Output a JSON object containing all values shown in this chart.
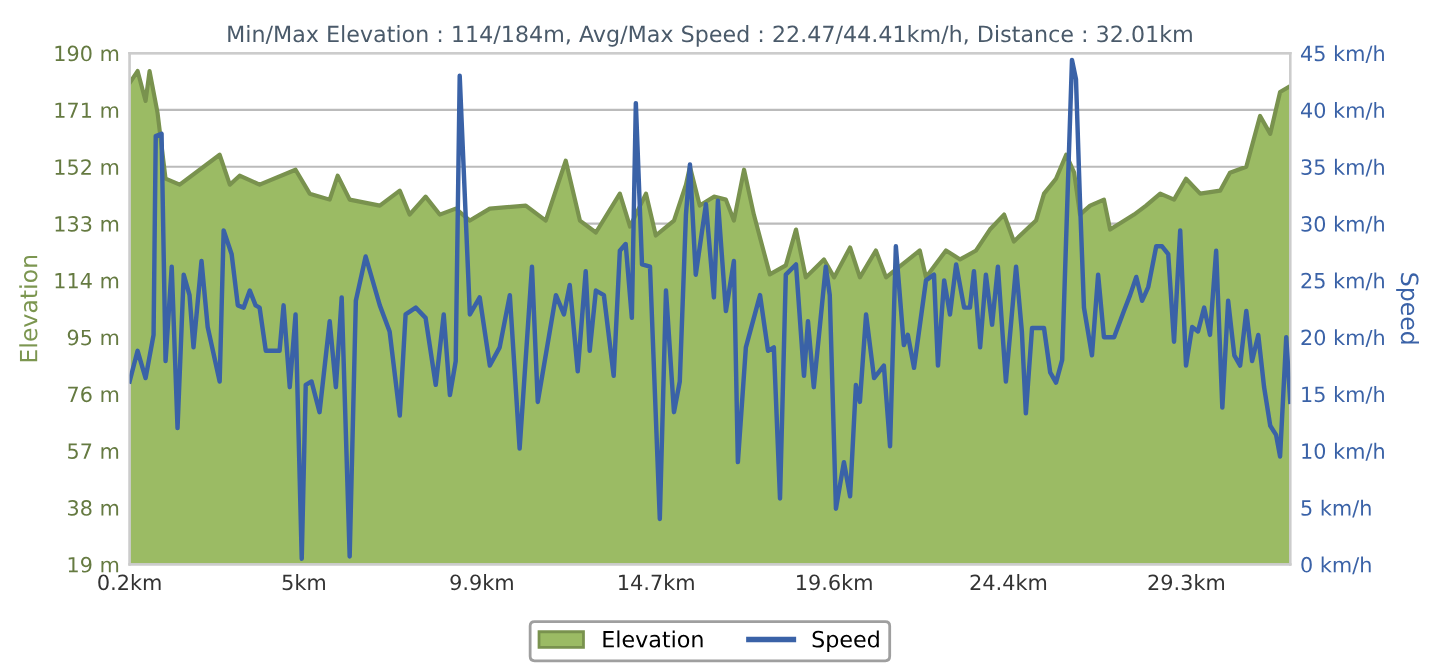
{
  "chart_data": {
    "type": "area",
    "title": "Min/Max Elevation : 114/184m, Avg/Max Speed : 22.47/44.41km/h, Distance : 32.01km",
    "ylabel": "Elevation",
    "y2label": "Speed",
    "xlim": [
      0.2,
      32.16
    ],
    "xticks": [
      {
        "value": 0.2,
        "label": "0.2km"
      },
      {
        "value": 5,
        "label": "5km"
      },
      {
        "value": 9.9,
        "label": "9.9km"
      },
      {
        "value": 14.7,
        "label": "14.7km"
      },
      {
        "value": 19.6,
        "label": "19.6km"
      },
      {
        "value": 24.4,
        "label": "24.4km"
      },
      {
        "value": 29.3,
        "label": "29.3km"
      }
    ],
    "ylim": [
      19,
      190
    ],
    "yticks": [
      {
        "value": 19,
        "label": "19 m"
      },
      {
        "value": 38,
        "label": "38 m"
      },
      {
        "value": 57,
        "label": "57 m"
      },
      {
        "value": 76,
        "label": "76 m"
      },
      {
        "value": 95,
        "label": "95 m"
      },
      {
        "value": 114,
        "label": "114 m"
      },
      {
        "value": 133,
        "label": "133 m"
      },
      {
        "value": 152,
        "label": "152 m"
      },
      {
        "value": 171,
        "label": "171 m"
      },
      {
        "value": 190,
        "label": "190 m"
      }
    ],
    "y2lim": [
      0,
      45
    ],
    "y2ticks": [
      {
        "value": 0,
        "label": "0 km/h"
      },
      {
        "value": 5,
        "label": "5 km/h"
      },
      {
        "value": 10,
        "label": "10 km/h"
      },
      {
        "value": 15,
        "label": "15 km/h"
      },
      {
        "value": 20,
        "label": "20 km/h"
      },
      {
        "value": 25,
        "label": "25 km/h"
      },
      {
        "value": 30,
        "label": "30 km/h"
      },
      {
        "value": 35,
        "label": "35 km/h"
      },
      {
        "value": 40,
        "label": "40 km/h"
      },
      {
        "value": 45,
        "label": "45 km/h"
      }
    ],
    "grid": "y",
    "legend": "bottom",
    "series": [
      {
        "name": "Elevation",
        "color": "#9bbb64",
        "x": [
          0.2,
          0.42,
          0.64,
          0.75,
          0.97,
          1.19,
          1.58,
          2.68,
          2.96,
          3.23,
          3.78,
          4.77,
          5.16,
          5.71,
          5.93,
          6.26,
          7.09,
          7.64,
          7.91,
          8.35,
          8.74,
          9.18,
          9.57,
          10.12,
          11.11,
          11.66,
          12.21,
          12.6,
          13.04,
          13.7,
          13.98,
          14.42,
          14.69,
          15.19,
          15.52,
          15.63,
          15.9,
          16.29,
          16.62,
          16.84,
          17.12,
          17.39,
          17.83,
          18.27,
          18.55,
          18.82,
          19.32,
          19.6,
          20.04,
          20.31,
          20.75,
          21.03,
          21.96,
          22.13,
          22.68,
          23.07,
          23.51,
          23.89,
          24.28,
          24.55,
          25.16,
          25.38,
          25.71,
          25.99,
          26.21,
          26.37,
          26.65,
          27.03,
          27.2,
          27.86,
          28.19,
          28.58,
          28.96,
          29.29,
          29.68,
          30.23,
          30.5,
          30.95,
          31.33,
          31.61,
          31.88,
          32.16
        ],
        "values": [
          180,
          184,
          174,
          184,
          170,
          148,
          146,
          156,
          146,
          149,
          146,
          151,
          143,
          141,
          149,
          141,
          139,
          144,
          136,
          142,
          136,
          138,
          134,
          138,
          139,
          134,
          154,
          134,
          130,
          143,
          132,
          143,
          129,
          134,
          146,
          152,
          139,
          142,
          141,
          134,
          151,
          136,
          116,
          119,
          131,
          115,
          121,
          115,
          125,
          115,
          124,
          115,
          124,
          115,
          124,
          121,
          124,
          131,
          136,
          127,
          134,
          143,
          148,
          156,
          150,
          136,
          139,
          141,
          131,
          136,
          139,
          143,
          141,
          148,
          143,
          144,
          150,
          152,
          169,
          163,
          177,
          179
        ]
      },
      {
        "name": "Speed",
        "type": "line",
        "axis": "y2",
        "color": "#3a62a7",
        "x": [
          0.2,
          0.42,
          0.64,
          0.86,
          0.92,
          1.08,
          1.19,
          1.36,
          1.52,
          1.69,
          1.85,
          1.96,
          2.18,
          2.35,
          2.68,
          2.79,
          3.01,
          3.18,
          3.34,
          3.51,
          3.67,
          3.78,
          3.95,
          4.33,
          4.44,
          4.61,
          4.77,
          4.94,
          5.05,
          5.21,
          5.43,
          5.71,
          5.88,
          6.04,
          6.26,
          6.43,
          6.7,
          7.09,
          7.36,
          7.64,
          7.8,
          8.08,
          8.35,
          8.63,
          8.85,
          9.02,
          9.18,
          9.29,
          9.57,
          9.84,
          10.12,
          10.39,
          10.67,
          10.94,
          11.28,
          11.44,
          11.94,
          12.16,
          12.32,
          12.54,
          12.76,
          12.87,
          13.04,
          13.26,
          13.53,
          13.7,
          13.86,
          14.03,
          14.14,
          14.31,
          14.53,
          14.8,
          14.97,
          15.19,
          15.35,
          15.52,
          15.63,
          15.79,
          16.07,
          16.29,
          16.4,
          16.62,
          16.84,
          16.95,
          17.17,
          17.56,
          17.78,
          17.94,
          18.11,
          18.27,
          18.55,
          18.77,
          18.88,
          19.04,
          19.37,
          19.48,
          19.65,
          19.87,
          20.04,
          20.2,
          20.31,
          20.48,
          20.7,
          20.97,
          21.14,
          21.3,
          21.52,
          21.63,
          21.8,
          22.13,
          22.35,
          22.46,
          22.63,
          22.79,
          22.96,
          23.18,
          23.34,
          23.45,
          23.62,
          23.78,
          23.95,
          24.11,
          24.33,
          24.61,
          24.77,
          24.88,
          25.05,
          25.22,
          25.38,
          25.55,
          25.71,
          25.88,
          26.15,
          26.26,
          26.37,
          26.48,
          26.7,
          26.87,
          27.03,
          27.31,
          27.58,
          27.75,
          27.92,
          28.08,
          28.25,
          28.47,
          28.63,
          28.8,
          28.96,
          29.13,
          29.29,
          29.46,
          29.62,
          29.79,
          29.95,
          30.12,
          30.29,
          30.45,
          30.62,
          30.78,
          30.95,
          31.11,
          31.28,
          31.44,
          31.61,
          31.77,
          31.88,
          32.05,
          32.16
        ],
        "values": [
          16.1,
          18.8,
          16.4,
          20.2,
          37.7,
          37.9,
          17.9,
          26.2,
          12,
          25.5,
          23.7,
          19.1,
          26.7,
          20.9,
          16.1,
          29.4,
          27.3,
          22.8,
          22.6,
          24.1,
          22.8,
          22.6,
          18.8,
          18.8,
          22.8,
          15.6,
          22,
          0.5,
          15.8,
          16.1,
          13.4,
          21.4,
          15.6,
          23.5,
          0.7,
          23.2,
          27.1,
          22.8,
          20.5,
          13.1,
          22,
          22.6,
          21.7,
          15.8,
          22,
          14.9,
          17.9,
          43,
          22,
          23.5,
          17.5,
          19.1,
          23.7,
          10.2,
          26.2,
          14.3,
          23.7,
          22,
          24.6,
          17,
          25.8,
          18.8,
          24.1,
          23.7,
          16.6,
          27.6,
          28.2,
          21.7,
          40.6,
          26.4,
          26.2,
          4,
          24.1,
          13.4,
          16.1,
          30.8,
          35.2,
          25.5,
          31.7,
          23.5,
          32,
          22.3,
          26.7,
          9,
          19.1,
          23.7,
          18.8,
          19.1,
          5.8,
          25.5,
          26.4,
          16.6,
          21.4,
          15.6,
          26.2,
          23.7,
          4.9,
          9,
          6,
          15.8,
          14.3,
          22,
          16.4,
          17.5,
          10.4,
          28,
          19.3,
          20.2,
          17.3,
          25,
          25.5,
          17.5,
          25,
          22,
          26.4,
          22.6,
          22.6,
          25.8,
          19.1,
          25.5,
          21.1,
          26.2,
          16.1,
          26.2,
          20.5,
          13.3,
          20.8,
          20.8,
          20.8,
          16.9,
          16,
          18,
          44.4,
          42.7,
          32,
          22.6,
          18.4,
          25.5,
          20,
          20,
          22.3,
          23.7,
          25.3,
          23.2,
          24.4,
          28,
          28,
          27.3,
          19.6,
          29.4,
          17.5,
          20.9,
          20.5,
          22.6,
          20.2,
          27.6,
          13.8,
          23.2,
          18.4,
          17.5,
          22.3,
          17.9,
          20.2,
          15.6,
          12.2,
          11.4,
          9.5,
          20,
          14.3
        ]
      }
    ]
  }
}
